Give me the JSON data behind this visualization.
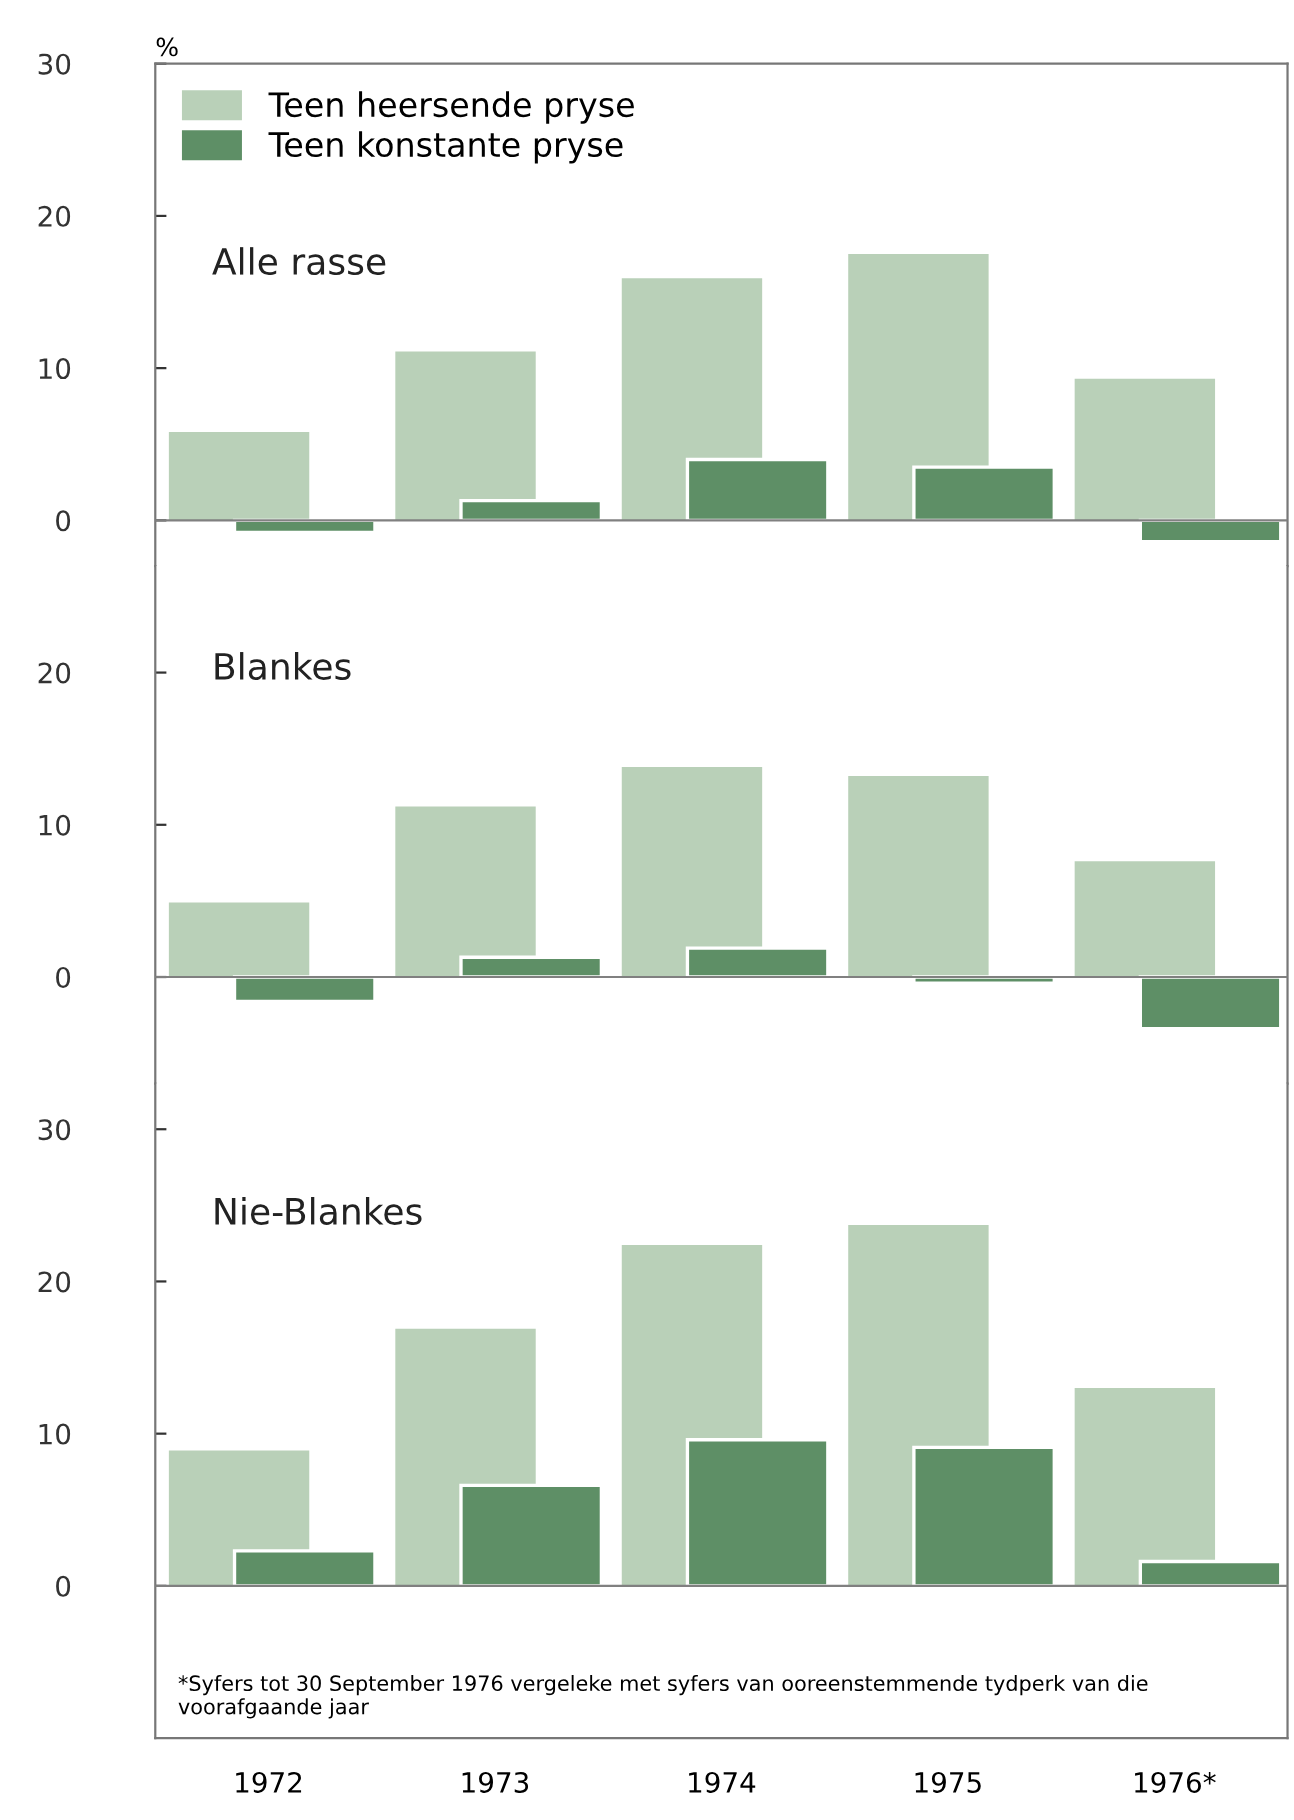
{
  "chart_data": [
    {
      "type": "bar",
      "title": "Alle rasse",
      "ylabel": "%",
      "categories": [
        null,
        null,
        null,
        null,
        null
      ],
      "series": [
        {
          "name": "Teen heersende pryse",
          "color": "#b9d0b8",
          "values": [
            5.8,
            11.1,
            15.9,
            17.5,
            9.3
          ]
        },
        {
          "name": "Teen konstante pryse",
          "color": "#5e8f66",
          "values": [
            -0.8,
            1.3,
            4.0,
            3.5,
            -1.4
          ]
        }
      ],
      "ylim": [
        -3,
        30
      ],
      "yticks": [
        0,
        10,
        20,
        30
      ],
      "legend": "top left",
      "tick_labels": "y",
      "ref_lines": [
        {
          "axis": "y",
          "value": 0,
          "color": "#808080"
        }
      ]
    },
    {
      "type": "bar",
      "title": "Blankes",
      "categories": [
        null,
        null,
        null,
        null,
        null
      ],
      "series": [
        {
          "color": "#b9d0b8",
          "values": [
            4.9,
            11.2,
            13.8,
            13.2,
            7.6
          ]
        },
        {
          "color": "#5e8f66",
          "values": [
            -1.6,
            1.3,
            1.9,
            -0.4,
            -3.4
          ]
        }
      ],
      "ylim": [
        -7,
        27
      ],
      "yticks": [
        0,
        10,
        20
      ],
      "tick_labels": "y",
      "ref_lines": [
        {
          "axis": "y",
          "value": 0,
          "color": "#808080"
        }
      ]
    },
    {
      "type": "bar",
      "title": "Nie-Blankes",
      "categories": [
        "1972",
        "1973",
        "1974",
        "1975",
        "1976*"
      ],
      "series": [
        {
          "color": "#b9d0b8",
          "values": [
            8.9,
            16.9,
            22.4,
            23.7,
            13.0
          ]
        },
        {
          "color": "#5e8f66",
          "values": [
            2.3,
            6.6,
            9.6,
            9.1,
            1.6
          ]
        }
      ],
      "ylim": [
        -10,
        33
      ],
      "yticks": [
        0,
        10,
        20,
        30
      ],
      "ref_lines": [
        {
          "axis": "y",
          "value": 0,
          "color": "#808080"
        }
      ],
      "annotations": [
        "*Syfers tot 30 September 1976 vergeleke met syfers van ooreenstemmende tydperk van die voorafgaande jaar"
      ]
    }
  ]
}
